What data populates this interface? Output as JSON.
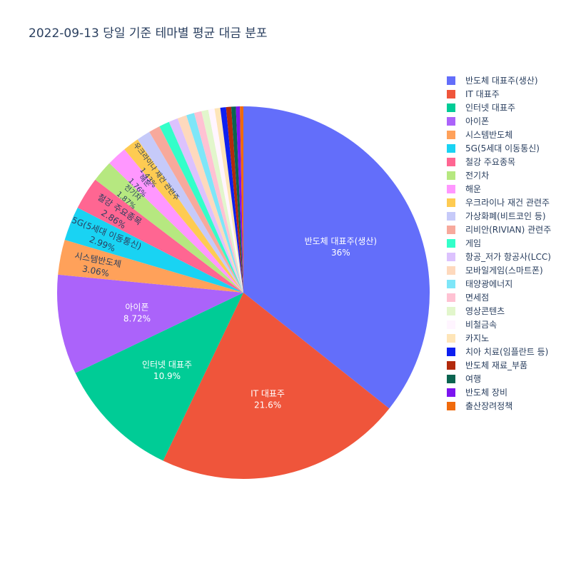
{
  "chart_data": {
    "type": "pie",
    "title": "2022-09-13 당일 기준 테마별 평균 대금 분포",
    "legend_position": "right",
    "slices": [
      {
        "label": "반도체 대표주(생산)",
        "value": 36,
        "display": "36%",
        "color": "#636efa"
      },
      {
        "label": "IT 대표주",
        "value": 21.6,
        "display": "21.6%",
        "color": "#ef553b"
      },
      {
        "label": "인터넷 대표주",
        "value": 10.9,
        "display": "10.9%",
        "color": "#00cc96"
      },
      {
        "label": "아이폰",
        "value": 8.72,
        "display": "8.72%",
        "color": "#ab63fa"
      },
      {
        "label": "시스템반도체",
        "value": 3.06,
        "display": "3.06%",
        "color": "#ffa15a"
      },
      {
        "label": "5G(5세대 이동통신)",
        "value": 2.99,
        "display": "2.99%",
        "color": "#19d3f3"
      },
      {
        "label": "철강 주요종목",
        "value": 2.86,
        "display": "2.86%",
        "color": "#ff6692"
      },
      {
        "label": "전기차",
        "value": 1.87,
        "display": "1.87%",
        "color": "#b6e880"
      },
      {
        "label": "해운",
        "value": 1.76,
        "display": "1.76%",
        "color": "#ff97ff"
      },
      {
        "label": "우크라이나 재건 관련주",
        "value": 1.43,
        "display": "1.43%",
        "color": "#fecb52"
      },
      {
        "label": "가상화폐(비트코인 등)",
        "value": 1.2,
        "display": "",
        "color": "#c6caf9"
      },
      {
        "label": "리비안(RIVIAN) 관련주",
        "value": 1.0,
        "display": "",
        "color": "#f7a99c"
      },
      {
        "label": "게임",
        "value": 0.9,
        "display": "",
        "color": "#33ffc9"
      },
      {
        "label": "항공_저가 항공사(LCC)",
        "value": 0.8,
        "display": "",
        "color": "#dcc2fe"
      },
      {
        "label": "모바일게임(스마트폰)",
        "value": 0.8,
        "display": "",
        "color": "#fed9bd"
      },
      {
        "label": "태양광에너지",
        "value": 0.7,
        "display": "",
        "color": "#7ee6f8"
      },
      {
        "label": "면세점",
        "value": 0.65,
        "display": "",
        "color": "#ffc2d3"
      },
      {
        "label": "영상콘텐츠",
        "value": 0.6,
        "display": "",
        "color": "#e2f6cc"
      },
      {
        "label": "비철금속",
        "value": 0.55,
        "display": "",
        "color": "#fff5ff"
      },
      {
        "label": "카지노",
        "value": 0.5,
        "display": "",
        "color": "#fee5b8"
      },
      {
        "label": "치아 치료(임플란트 등)",
        "value": 0.5,
        "display": "",
        "color": "#0d1ff0"
      },
      {
        "label": "반도체 재료_부품",
        "value": 0.45,
        "display": "",
        "color": "#b22a0c"
      },
      {
        "label": "여행",
        "value": 0.4,
        "display": "",
        "color": "#0a6450"
      },
      {
        "label": "반도체 장비",
        "value": 0.35,
        "display": "",
        "color": "#7c14f0"
      },
      {
        "label": "출산장려정책",
        "value": 0.3,
        "display": "",
        "color": "#f06a0c"
      }
    ]
  }
}
